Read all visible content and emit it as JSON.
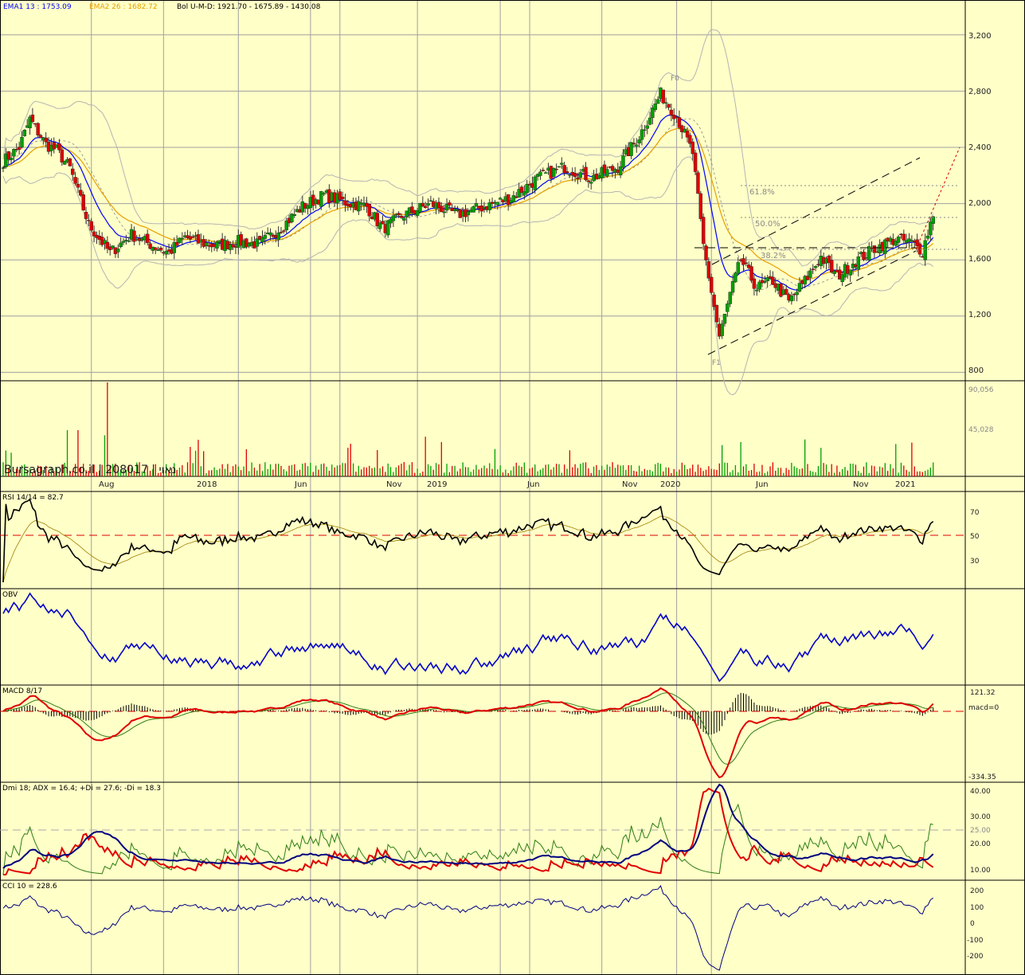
{
  "header": {
    "ema1": "EMA1 13 : 1753.09",
    "ema2": "EMA2 26 : 1682.72",
    "bol": "Bol U-M-D: 1921.70 - 1675.89 - 1430.08"
  },
  "watermark": "Bursagraph.co.il | 208017 | נאוי",
  "colors": {
    "background": "#ffffc8",
    "grid": "#a0a0a0",
    "up": "#00a000",
    "down": "#e00000",
    "ema1": "#0000ff",
    "ema2": "#e6a000",
    "bollinger": "#b4b4b4",
    "rsi": "#000000",
    "obv": "#0000c8",
    "macd": "#e00000",
    "adx": "#000080",
    "di_plus": "#2e7d12",
    "di_minus": "#e00000",
    "cci": "#000080"
  },
  "x_labels": [
    "Aug",
    "2018",
    "Jun",
    "Nov",
    "2019",
    "Jun",
    "Nov",
    "2020",
    "Jun",
    "Nov",
    "2021"
  ],
  "price_axis": [
    "3,200",
    "2,800",
    "2,400",
    "2,000",
    "1,600",
    "1,200",
    "800"
  ],
  "volume_axis": [
    "90,056",
    "45,028"
  ],
  "annotations": {
    "f0": "F0",
    "f1": "F1",
    "fib_618": "61.8%",
    "fib_500": "50.0%",
    "fib_382": "38.2%"
  },
  "panels": {
    "rsi": {
      "label": "RSI 14/14 = 82.7",
      "ticks": [
        "70",
        "50",
        "30"
      ]
    },
    "obv": {
      "label": "OBV"
    },
    "macd": {
      "label": "MACD 8/17",
      "ticks": [
        "121.32",
        "macd=0",
        "-334.35"
      ]
    },
    "dmi": {
      "label": "Dmi 18; ADX = 16.4; +Di = 27.6; -Di = 18.3",
      "ticks": [
        "40.00",
        "30.00",
        "25.00",
        "20.00",
        "10.00"
      ]
    },
    "cci": {
      "label": "CCI 10 = 228.6",
      "ticks": [
        "200",
        "100",
        "0",
        "-100",
        "-200"
      ]
    }
  },
  "chart_data": {
    "type": "candlestick",
    "series_points": [
      [
        0,
        2300
      ],
      [
        6,
        2400
      ],
      [
        10,
        2600
      ],
      [
        16,
        2420
      ],
      [
        20,
        2380
      ],
      [
        25,
        2250
      ],
      [
        32,
        1850
      ],
      [
        40,
        1650
      ],
      [
        48,
        1780
      ],
      [
        56,
        1700
      ],
      [
        62,
        1650
      ],
      [
        68,
        1760
      ],
      [
        74,
        1720
      ],
      [
        80,
        1700
      ],
      [
        88,
        1730
      ],
      [
        96,
        1710
      ],
      [
        104,
        1830
      ],
      [
        112,
        1980
      ],
      [
        120,
        2060
      ],
      [
        128,
        2010
      ],
      [
        136,
        1980
      ],
      [
        142,
        1820
      ],
      [
        150,
        1920
      ],
      [
        160,
        2000
      ],
      [
        170,
        1920
      ],
      [
        180,
        1980
      ],
      [
        190,
        2040
      ],
      [
        200,
        2180
      ],
      [
        210,
        2260
      ],
      [
        220,
        2180
      ],
      [
        230,
        2260
      ],
      [
        238,
        2480
      ],
      [
        246,
        2780
      ],
      [
        252,
        2620
      ],
      [
        258,
        2360
      ],
      [
        262,
        1700
      ],
      [
        268,
        1050
      ],
      [
        272,
        1350
      ],
      [
        276,
        1600
      ],
      [
        282,
        1400
      ],
      [
        288,
        1450
      ],
      [
        294,
        1300
      ],
      [
        300,
        1450
      ],
      [
        306,
        1620
      ],
      [
        312,
        1480
      ],
      [
        318,
        1580
      ],
      [
        326,
        1680
      ],
      [
        334,
        1750
      ],
      [
        340,
        1720
      ],
      [
        344,
        1660
      ],
      [
        348,
        1930
      ]
    ],
    "last_candle_x": 348,
    "x_label_positions": [
      33,
      60,
      88,
      115,
      126,
      155,
      186,
      197,
      224,
      252,
      265
    ],
    "price_ticks": [
      3200,
      2800,
      2400,
      2000,
      1600,
      1200,
      800
    ],
    "price_range": [
      740,
      3380
    ],
    "volume_ticks": [
      90056,
      45028
    ]
  }
}
